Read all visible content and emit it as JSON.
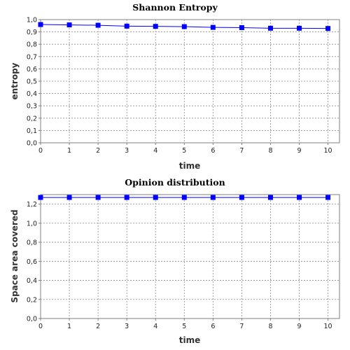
{
  "chart_data": [
    {
      "type": "line",
      "title": "Shannon Entropy",
      "xlabel": "time",
      "ylabel": "entropy",
      "xlim": [
        0,
        10.4
      ],
      "ylim": [
        0,
        1.0
      ],
      "xticks": [
        "0",
        "1",
        "2",
        "3",
        "4",
        "5",
        "6",
        "7",
        "8",
        "9",
        "10"
      ],
      "yticks": [
        {
          "value": 0.0,
          "label": "0,0"
        },
        {
          "value": 0.1,
          "label": "0,1"
        },
        {
          "value": 0.2,
          "label": "0,2"
        },
        {
          "value": 0.3,
          "label": "0,3"
        },
        {
          "value": 0.4,
          "label": "0,4"
        },
        {
          "value": 0.5,
          "label": "0,5"
        },
        {
          "value": 0.6,
          "label": "0,6"
        },
        {
          "value": 0.7,
          "label": "0,7"
        },
        {
          "value": 0.8,
          "label": "0,8"
        },
        {
          "value": 0.9,
          "label": "0,9"
        },
        {
          "value": 1.0,
          "label": "1,0"
        }
      ],
      "grid": true,
      "series": [
        {
          "color": "#0000ff",
          "x": [
            0,
            1,
            2,
            3,
            4,
            5,
            6,
            7,
            8,
            9,
            10
          ],
          "values": [
            0.96,
            0.957,
            0.954,
            0.947,
            0.945,
            0.943,
            0.937,
            0.935,
            0.93,
            0.93,
            0.928
          ]
        }
      ]
    },
    {
      "type": "line",
      "title": "Opinion distribution",
      "xlabel": "time",
      "ylabel": "Space area covered",
      "xlim": [
        0,
        10.4
      ],
      "ylim": [
        0,
        1.3
      ],
      "xticks": [
        "0",
        "1",
        "2",
        "3",
        "4",
        "5",
        "6",
        "7",
        "8",
        "9",
        "10"
      ],
      "yticks": [
        {
          "value": 0.0,
          "label": "0,0"
        },
        {
          "value": 0.2,
          "label": "0,2"
        },
        {
          "value": 0.4,
          "label": "0,4"
        },
        {
          "value": 0.6,
          "label": "0,6"
        },
        {
          "value": 0.8,
          "label": "0,8"
        },
        {
          "value": 1.0,
          "label": "1,0"
        },
        {
          "value": 1.2,
          "label": "1,2"
        }
      ],
      "grid": true,
      "series": [
        {
          "color": "#0000ff",
          "x": [
            0,
            1,
            2,
            3,
            4,
            5,
            6,
            7,
            8,
            9,
            10
          ],
          "values": [
            1.27,
            1.27,
            1.27,
            1.27,
            1.27,
            1.27,
            1.27,
            1.27,
            1.27,
            1.27,
            1.27
          ]
        }
      ]
    }
  ]
}
